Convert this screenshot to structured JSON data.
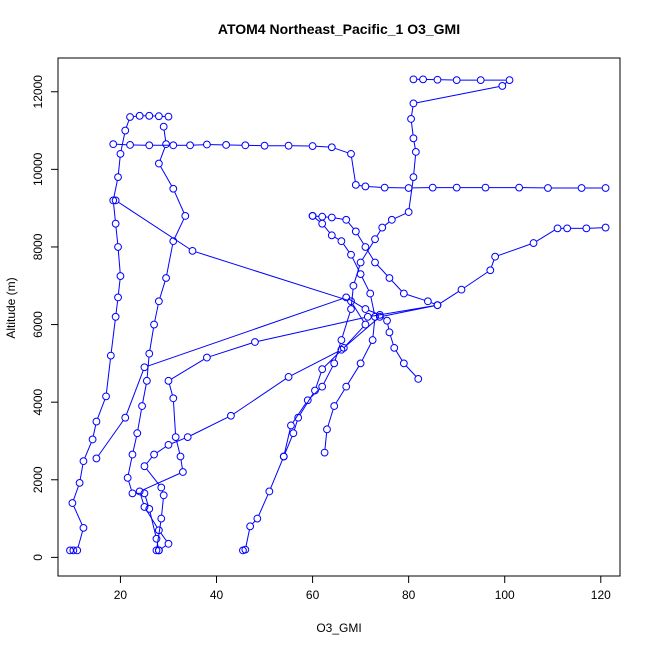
{
  "chart_data": {
    "type": "line",
    "title": "ATOM4 Northeast_Pacific_1 O3_GMI",
    "xlabel": "O3_GMI",
    "ylabel": "Altitude (m)",
    "xlim": [
      7,
      124
    ],
    "ylim": [
      -480,
      12870
    ],
    "x_ticks": [
      20,
      40,
      60,
      80,
      100,
      120
    ],
    "y_ticks": [
      0,
      2000,
      4000,
      6000,
      8000,
      10000,
      12000
    ],
    "grid": false,
    "marker": "open-circle",
    "color": "#0000ff",
    "series": [
      {
        "points": [
          [
            9.5,
            180
          ],
          [
            10.2,
            180
          ],
          [
            11.0,
            180
          ],
          [
            12.3,
            760
          ],
          [
            10.0,
            1400
          ],
          [
            11.5,
            1920
          ],
          [
            12.3,
            2480
          ],
          [
            14.2,
            3040
          ],
          [
            15.0,
            3500
          ],
          [
            17.0,
            4150
          ],
          [
            18.0,
            5200
          ],
          [
            19.0,
            6200
          ],
          [
            19.5,
            6700
          ],
          [
            20.0,
            7250
          ],
          [
            19.5,
            8000
          ],
          [
            19.0,
            8600
          ],
          [
            18.5,
            9200
          ],
          [
            19.5,
            9800
          ],
          [
            20.0,
            10400
          ],
          [
            21.0,
            11000
          ],
          [
            22.0,
            11350
          ],
          [
            24.0,
            11380
          ],
          [
            26.0,
            11380
          ],
          [
            28.0,
            11370
          ],
          [
            30.0,
            11360
          ]
        ]
      },
      {
        "points": [
          [
            29.0,
            11100
          ],
          [
            29.5,
            10650
          ],
          [
            28.0,
            10150
          ],
          [
            31.0,
            9500
          ],
          [
            33.5,
            8800
          ],
          [
            31.0,
            8150
          ],
          [
            29.5,
            7200
          ],
          [
            28.0,
            6600
          ],
          [
            27.0,
            6000
          ],
          [
            26.0,
            5250
          ],
          [
            25.5,
            4550
          ],
          [
            24.5,
            3900
          ],
          [
            23.5,
            3200
          ],
          [
            22.5,
            2650
          ],
          [
            21.5,
            2050
          ],
          [
            22.5,
            1650
          ],
          [
            25.0,
            1650
          ],
          [
            26.0,
            1250
          ],
          [
            27.5,
            480
          ],
          [
            28.0,
            180
          ]
        ]
      },
      {
        "points": [
          [
            18.5,
            10650
          ],
          [
            22.0,
            10630
          ],
          [
            26.0,
            10620
          ],
          [
            31.0,
            10620
          ],
          [
            34.5,
            10620
          ],
          [
            38.0,
            10640
          ],
          [
            42.0,
            10630
          ],
          [
            46.0,
            10620
          ],
          [
            50.0,
            10610
          ],
          [
            55.0,
            10610
          ],
          [
            60.0,
            10600
          ],
          [
            64.0,
            10570
          ],
          [
            68.0,
            10400
          ],
          [
            69.0,
            9600
          ],
          [
            71.0,
            9560
          ],
          [
            75.0,
            9530
          ],
          [
            80.0,
            9520
          ],
          [
            85.0,
            9530
          ],
          [
            90.0,
            9530
          ],
          [
            96.0,
            9530
          ],
          [
            103.0,
            9530
          ],
          [
            109.0,
            9520
          ],
          [
            116.0,
            9520
          ],
          [
            121.0,
            9520
          ]
        ]
      },
      {
        "points": [
          [
            19.0,
            9200
          ],
          [
            35.0,
            7900
          ],
          [
            68.0,
            6600
          ],
          [
            71.0,
            6000
          ],
          [
            66.5,
            5400
          ],
          [
            62.0,
            4850
          ],
          [
            60.5,
            4300
          ],
          [
            57.0,
            3600
          ],
          [
            56.0,
            3200
          ],
          [
            54.0,
            2600
          ],
          [
            51.0,
            1700
          ],
          [
            48.5,
            1000
          ],
          [
            47.0,
            800
          ],
          [
            46.0,
            200
          ],
          [
            45.5,
            180
          ]
        ]
      },
      {
        "points": [
          [
            60.0,
            8800
          ],
          [
            62.0,
            8600
          ],
          [
            64.0,
            8300
          ],
          [
            66.0,
            8150
          ],
          [
            68.0,
            7800
          ],
          [
            70.0,
            7300
          ],
          [
            72.0,
            6800
          ],
          [
            73.0,
            6200
          ],
          [
            72.5,
            5600
          ],
          [
            70.0,
            5000
          ],
          [
            67.0,
            4400
          ],
          [
            64.5,
            3900
          ],
          [
            63.0,
            3300
          ],
          [
            62.5,
            2700
          ]
        ]
      },
      {
        "points": [
          [
            60.0,
            8800
          ],
          [
            62.0,
            8780
          ],
          [
            64.0,
            8760
          ],
          [
            67.0,
            8700
          ],
          [
            69.0,
            8400
          ],
          [
            71.0,
            8000
          ],
          [
            73.0,
            7600
          ],
          [
            76.0,
            7200
          ],
          [
            79.0,
            6800
          ],
          [
            84.0,
            6600
          ],
          [
            86.0,
            6500
          ],
          [
            71.5,
            6200
          ],
          [
            48.0,
            5550
          ],
          [
            38.0,
            5150
          ],
          [
            30.0,
            4550
          ],
          [
            31.0,
            4100
          ],
          [
            31.5,
            3100
          ],
          [
            32.5,
            2600
          ],
          [
            33.0,
            2200
          ],
          [
            24.0,
            1700
          ],
          [
            25.0,
            1300
          ],
          [
            28.0,
            700
          ],
          [
            30.0,
            350
          ],
          [
            28.0,
            180
          ]
        ]
      },
      {
        "points": [
          [
            81.0,
            12320
          ],
          [
            83.0,
            12320
          ],
          [
            86.0,
            12310
          ],
          [
            90.0,
            12300
          ],
          [
            95.0,
            12300
          ],
          [
            101.0,
            12300
          ],
          [
            99.5,
            12150
          ],
          [
            81.0,
            11700
          ],
          [
            80.5,
            11300
          ],
          [
            81.0,
            10800
          ],
          [
            81.5,
            10450
          ],
          [
            81.0,
            9800
          ],
          [
            80.0,
            8900
          ],
          [
            76.5,
            8700
          ],
          [
            74.5,
            8500
          ],
          [
            73.0,
            8200
          ],
          [
            70.0,
            7600
          ],
          [
            68.5,
            7000
          ],
          [
            68.0,
            6400
          ],
          [
            66.0,
            5600
          ],
          [
            64.5,
            5000
          ],
          [
            62.0,
            4400
          ],
          [
            59.0,
            4050
          ],
          [
            55.5,
            3400
          ],
          [
            54.0,
            2600
          ]
        ]
      },
      {
        "points": [
          [
            121.0,
            8500
          ],
          [
            117.0,
            8480
          ],
          [
            113.0,
            8480
          ],
          [
            111.0,
            8480
          ],
          [
            106.0,
            8100
          ],
          [
            98.0,
            7750
          ],
          [
            97.0,
            7400
          ],
          [
            91.0,
            6900
          ],
          [
            86.0,
            6500
          ],
          [
            74.0,
            6200
          ],
          [
            66.0,
            5350
          ],
          [
            55.0,
            4650
          ],
          [
            43.0,
            3650
          ],
          [
            34.0,
            3100
          ],
          [
            30.0,
            2900
          ],
          [
            27.0,
            2650
          ],
          [
            25.0,
            2350
          ],
          [
            28.5,
            1800
          ],
          [
            29.0,
            1600
          ],
          [
            28.5,
            1000
          ],
          [
            27.5,
            180
          ]
        ]
      },
      {
        "points": [
          [
            15.0,
            2550
          ],
          [
            21.0,
            3600
          ],
          [
            25.0,
            4900
          ],
          [
            67.0,
            6700
          ],
          [
            71.0,
            6400
          ],
          [
            74.0,
            6250
          ],
          [
            75.5,
            6100
          ],
          [
            76.0,
            5800
          ],
          [
            77.0,
            5400
          ],
          [
            79.0,
            5000
          ],
          [
            82.0,
            4600
          ]
        ]
      }
    ]
  }
}
